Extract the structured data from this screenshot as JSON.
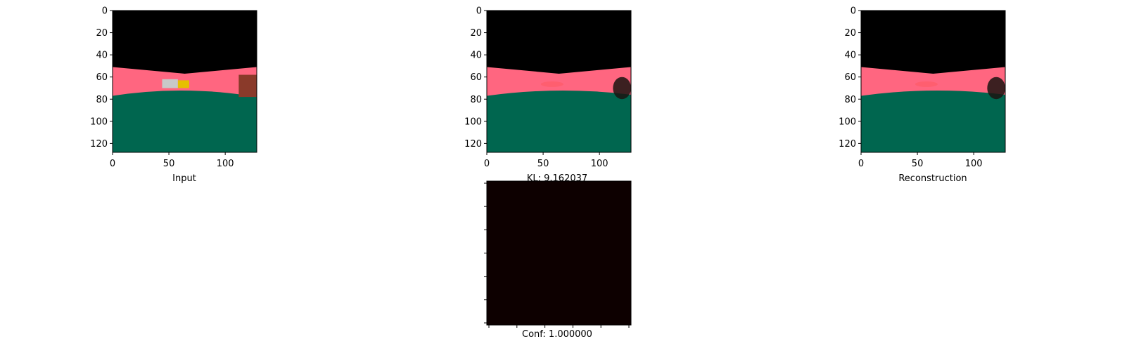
{
  "figure": {
    "background": "#ffffff"
  },
  "chart_data": [
    {
      "type": "image",
      "caption": "Input",
      "x_ticks": [
        0,
        50,
        100
      ],
      "y_ticks": [
        0,
        20,
        40,
        60,
        80,
        100,
        120
      ],
      "xlim": [
        0,
        128
      ],
      "ylim": [
        128,
        0
      ],
      "scene": {
        "sky_color": "#000000",
        "road_color": "#ff6680",
        "grass_color": "#00664f",
        "horizon_left": 51,
        "horizon_mid": 57,
        "horizon_right": 51,
        "grass_edge_left": 77,
        "grass_edge_mid": 69,
        "grass_edge_right": 78,
        "objects": [
          {
            "kind": "car",
            "color": "#c8c8c8",
            "x": [
              44,
              58
            ],
            "y": [
              62,
              70
            ]
          },
          {
            "kind": "car",
            "color": "#e6c000",
            "x": [
              58,
              68
            ],
            "y": [
              63,
              70
            ]
          },
          {
            "kind": "building",
            "color": "#8a3a2a",
            "x": [
              112,
              128
            ],
            "y": [
              58,
              78
            ]
          }
        ]
      }
    },
    {
      "type": "image",
      "caption": "KL: 9.162037",
      "x_ticks": [
        0,
        50,
        100
      ],
      "y_ticks": [
        0,
        20,
        40,
        60,
        80,
        100,
        120
      ],
      "xlim": [
        0,
        128
      ],
      "ylim": [
        128,
        0
      ],
      "scene": {
        "sky_color": "#000000",
        "road_color": "#ff6680",
        "grass_color": "#00664f",
        "horizon_left": 51,
        "horizon_mid": 57,
        "horizon_right": 51,
        "grass_edge_left": 77,
        "grass_edge_mid": 70,
        "grass_edge_right": 76,
        "objects": [
          {
            "kind": "blur",
            "color": "#ff5050",
            "x": [
              48,
              68
            ],
            "y": [
              64,
              69
            ]
          },
          {
            "kind": "blob",
            "color": "#1a1410",
            "x": [
              112,
              128
            ],
            "y": [
              60,
              80
            ]
          }
        ]
      }
    },
    {
      "type": "image",
      "caption": "Reconstruction",
      "x_ticks": [
        0,
        50,
        100
      ],
      "y_ticks": [
        0,
        20,
        40,
        60,
        80,
        100,
        120
      ],
      "xlim": [
        0,
        128
      ],
      "ylim": [
        128,
        0
      ],
      "scene": {
        "sky_color": "#000000",
        "road_color": "#ff6680",
        "grass_color": "#00664f",
        "horizon_left": 51,
        "horizon_mid": 57,
        "horizon_right": 51,
        "grass_edge_left": 77,
        "grass_edge_mid": 70,
        "grass_edge_right": 76,
        "objects": [
          {
            "kind": "blur",
            "color": "#ff5050",
            "x": [
              48,
              68
            ],
            "y": [
              64,
              69
            ]
          },
          {
            "kind": "blob",
            "color": "#1a1410",
            "x": [
              112,
              128
            ],
            "y": [
              60,
              80
            ]
          }
        ]
      }
    },
    {
      "type": "heatmap",
      "caption": "Conf: 1.000000",
      "fill_color": "#0d0000",
      "x_tick_count": 6,
      "y_tick_count": 7
    }
  ]
}
